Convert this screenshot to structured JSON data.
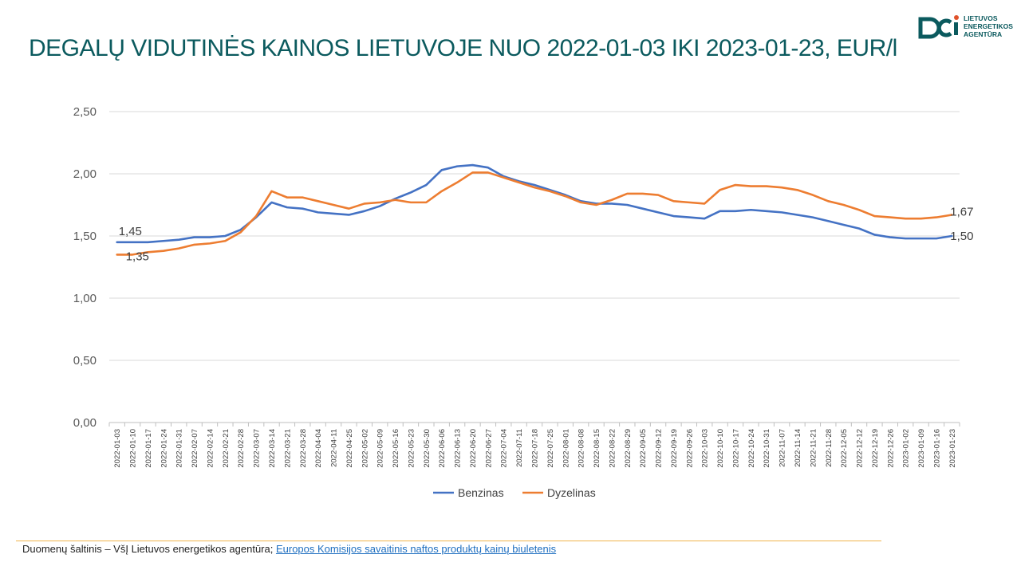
{
  "page": {
    "title": "DEGALŲ VIDUTINĖS KAINOS LIETUVOJE NUO 2022-01-03 IKI 2023-01-23, EUR/l",
    "logo_lines": [
      "LIETUVOS",
      "ENERGETIKOS",
      "AGENTŪRA"
    ],
    "footer_prefix": "Duomenų šaltinis – VšĮ Lietuvos energetikos agentūra; ",
    "footer_link": "Europos Komisijos savaitinis naftos produktų kainų biuletenis",
    "colors": {
      "title": "#0b5a5e",
      "footer_rule": "#f0b44b",
      "link": "#1f6fc0"
    }
  },
  "chart_data": {
    "type": "line",
    "title": "",
    "xlabel": "",
    "ylabel": "",
    "ylim": [
      0,
      2.5
    ],
    "yticks": [
      "0,00",
      "0,50",
      "1,00",
      "1,50",
      "2,00",
      "2,50"
    ],
    "ytick_values": [
      0,
      0.5,
      1.0,
      1.5,
      2.0,
      2.5
    ],
    "grid": true,
    "legend_position": "bottom",
    "x": [
      "2022-01-03",
      "2022-01-10",
      "2022-01-17",
      "2022-01-24",
      "2022-01-31",
      "2022-02-07",
      "2022-02-14",
      "2022-02-21",
      "2022-02-28",
      "2022-03-07",
      "2022-03-14",
      "2022-03-21",
      "2022-03-28",
      "2022-04-04",
      "2022-04-11",
      "2022-04-25",
      "2022-05-02",
      "2022-05-09",
      "2022-05-16",
      "2022-05-23",
      "2022-05-30",
      "2022-06-06",
      "2022-06-13",
      "2022-06-20",
      "2022-06-27",
      "2022-07-04",
      "2022-07-11",
      "2022-07-18",
      "2022-07-25",
      "2022-08-01",
      "2022-08-08",
      "2022-08-15",
      "2022-08-22",
      "2022-08-29",
      "2022-09-05",
      "2022-09-12",
      "2022-09-19",
      "2022-09-26",
      "2022-10-03",
      "2022-10-10",
      "2022-10-17",
      "2022-10-24",
      "2022-10-31",
      "2022-11-07",
      "2022-11-14",
      "2022-11-21",
      "2022-11-28",
      "2022-12-05",
      "2022-12-12",
      "2022-12-19",
      "2022-12-26",
      "2023-01-02",
      "2023-01-09",
      "2023-01-16",
      "2023-01-23"
    ],
    "series": [
      {
        "name": "Benzinas",
        "color": "#4472c4",
        "values": [
          1.45,
          1.45,
          1.45,
          1.46,
          1.47,
          1.49,
          1.49,
          1.5,
          1.55,
          1.65,
          1.77,
          1.73,
          1.72,
          1.69,
          1.68,
          1.67,
          1.7,
          1.74,
          1.8,
          1.85,
          1.91,
          2.03,
          2.06,
          2.07,
          2.05,
          1.98,
          1.94,
          1.91,
          1.87,
          1.83,
          1.78,
          1.76,
          1.76,
          1.75,
          1.72,
          1.69,
          1.66,
          1.65,
          1.64,
          1.7,
          1.7,
          1.71,
          1.7,
          1.69,
          1.67,
          1.65,
          1.62,
          1.59,
          1.56,
          1.51,
          1.49,
          1.48,
          1.48,
          1.48,
          1.5
        ],
        "labels": {
          "first": "1,45",
          "last": "1,50"
        }
      },
      {
        "name": "Dyzelinas",
        "color": "#ed7d31",
        "values": [
          1.35,
          1.35,
          1.37,
          1.38,
          1.4,
          1.43,
          1.44,
          1.46,
          1.53,
          1.66,
          1.86,
          1.81,
          1.81,
          1.78,
          1.75,
          1.72,
          1.76,
          1.77,
          1.79,
          1.77,
          1.77,
          1.86,
          1.93,
          2.01,
          2.01,
          1.97,
          1.93,
          1.89,
          1.86,
          1.82,
          1.77,
          1.75,
          1.79,
          1.84,
          1.84,
          1.83,
          1.78,
          1.77,
          1.76,
          1.87,
          1.91,
          1.9,
          1.9,
          1.89,
          1.87,
          1.83,
          1.78,
          1.75,
          1.71,
          1.66,
          1.65,
          1.64,
          1.64,
          1.65,
          1.67
        ],
        "labels": {
          "first": "1,35",
          "last": "1,67"
        }
      }
    ]
  }
}
